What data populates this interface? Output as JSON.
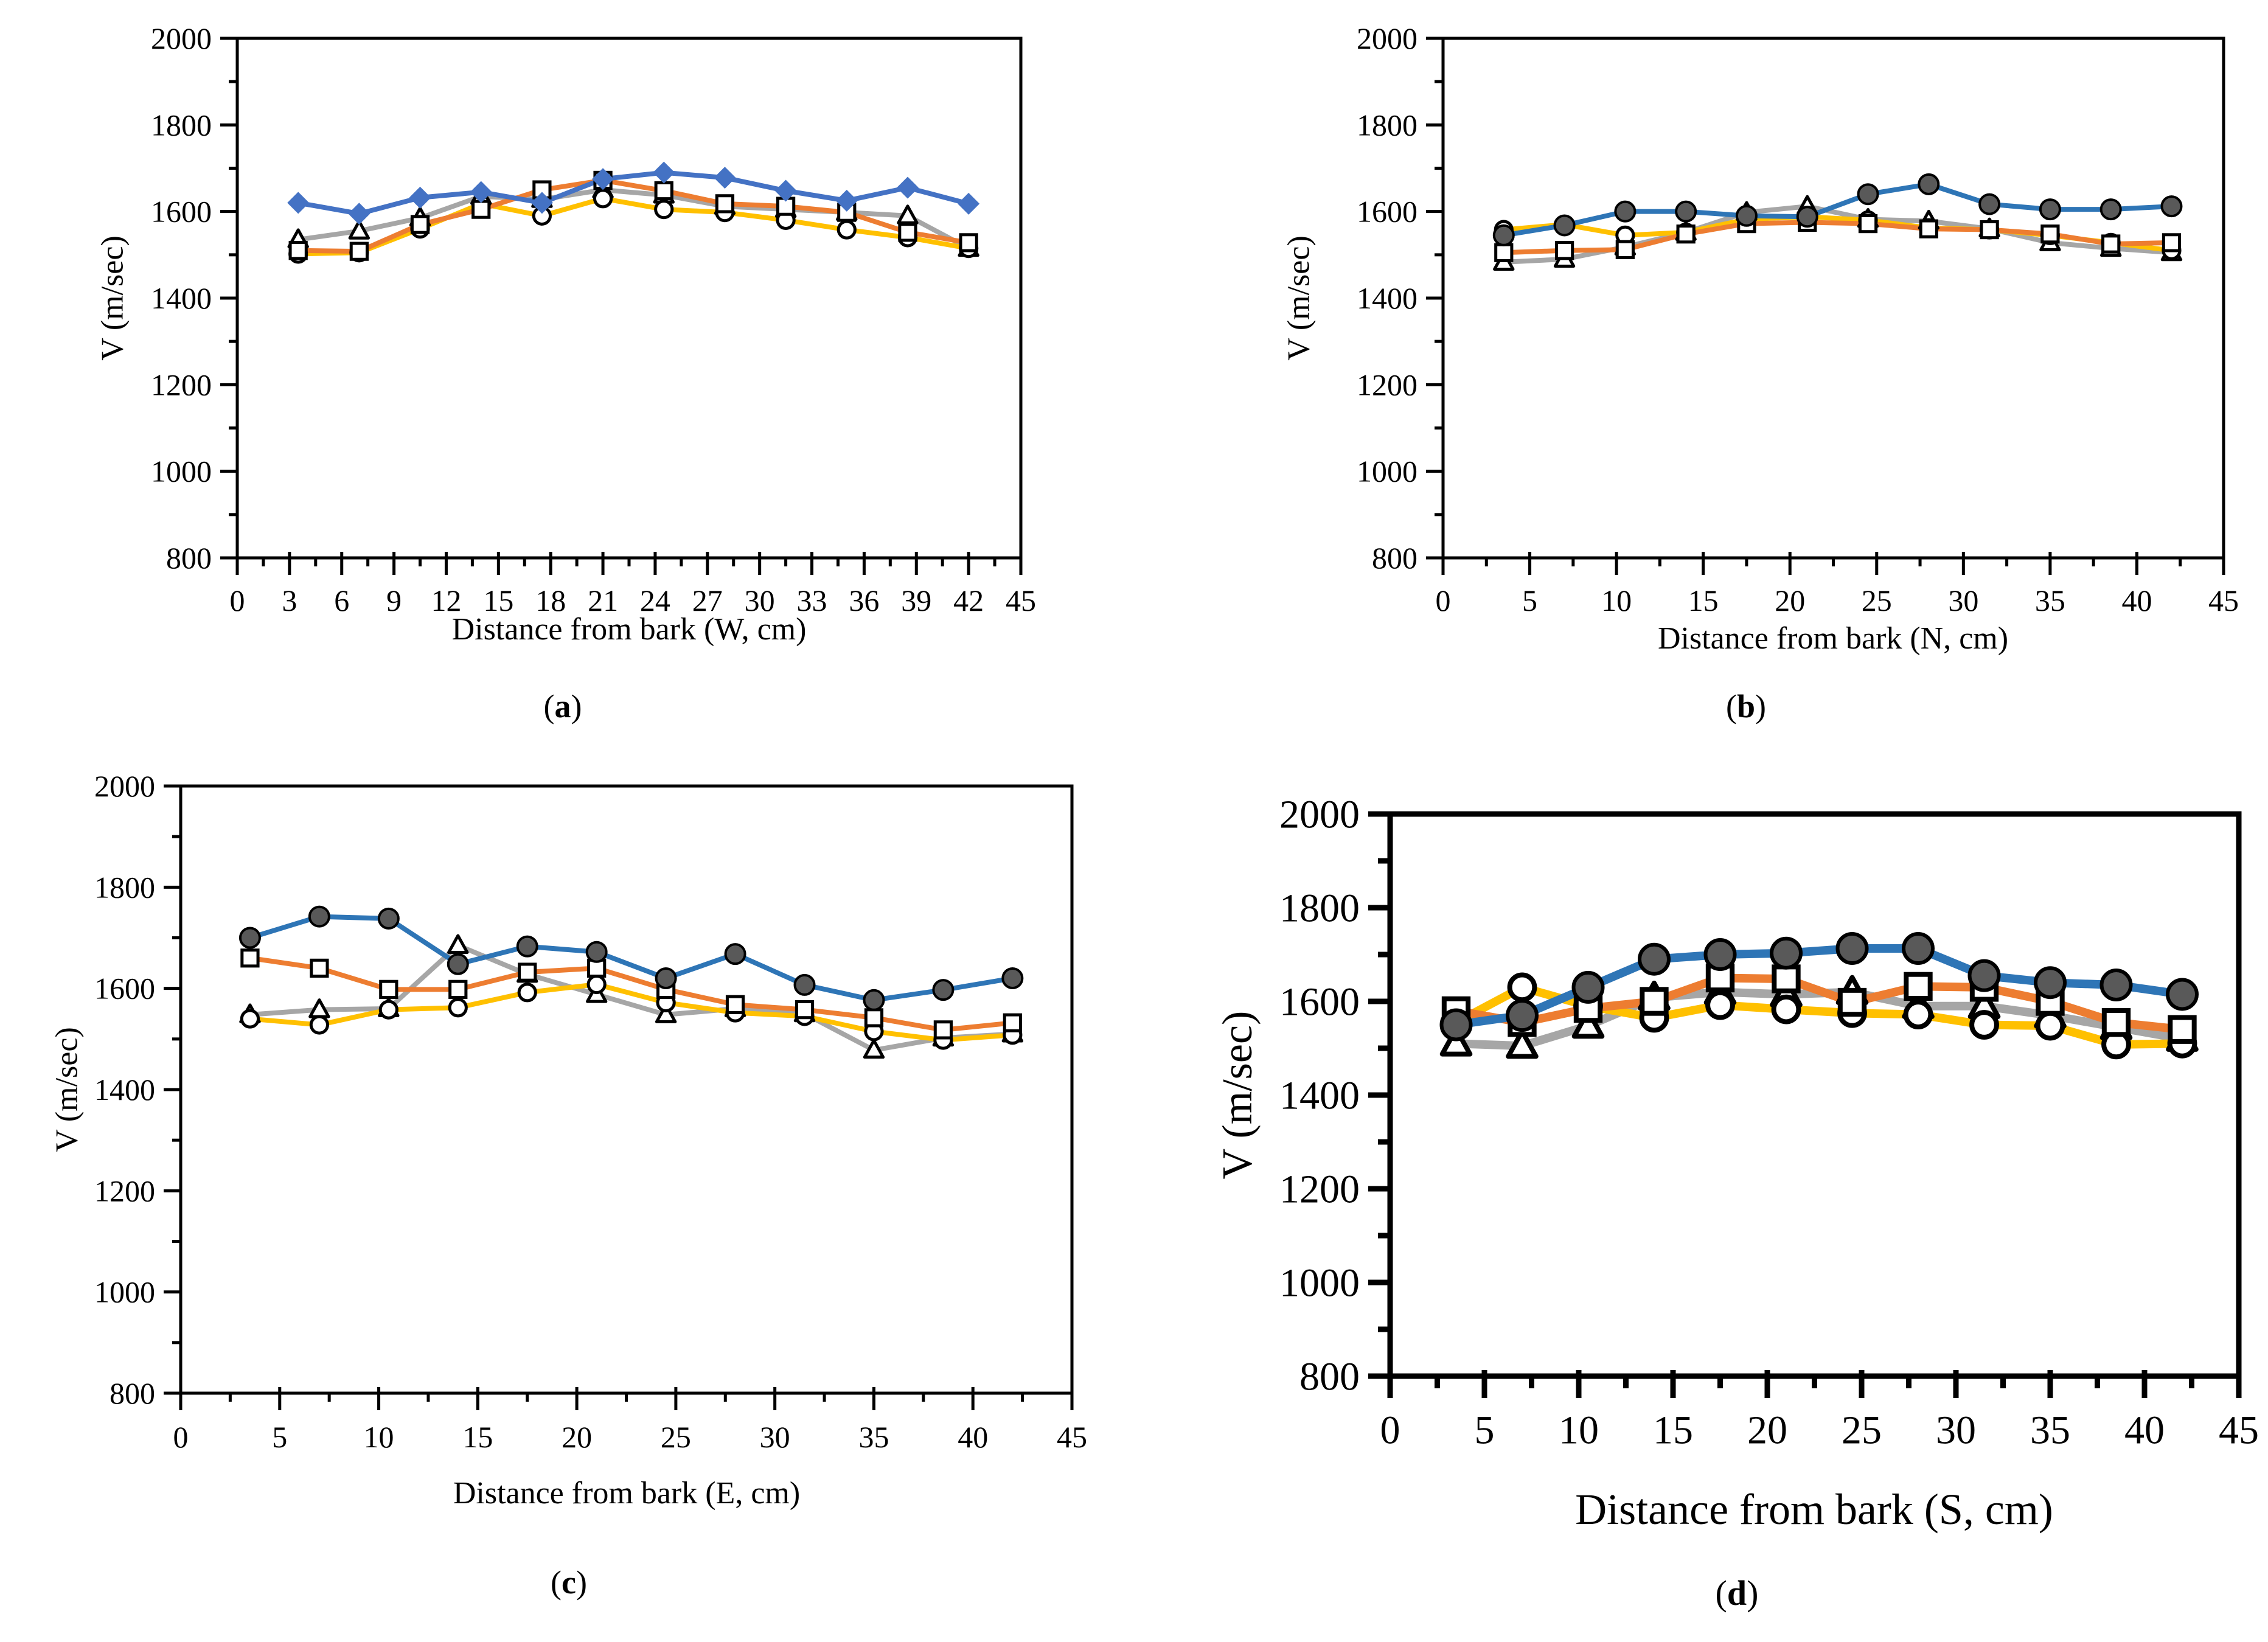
{
  "page": {
    "background": "#ffffff"
  },
  "colors": {
    "axis": "#000000",
    "blue_a": "#4472C4",
    "blue_bcd": "#2E75B6",
    "orange": "#ED7D31",
    "gray": "#A6A6A6",
    "yellow": "#FFC000",
    "dark_marker": "#595959",
    "open_marker_fill": "#FFFFFF",
    "marker_stroke": "#000000"
  },
  "chart_data": [
    {
      "id": "a",
      "type": "line",
      "caption": {
        "open": "(",
        "letter": "a",
        "close": ")"
      },
      "xlabel": "Distance from bark (W, cm)",
      "ylabel": "V  (m/sec)",
      "xlim": [
        0,
        45
      ],
      "ylim": [
        800,
        2000
      ],
      "x_ticks": [
        0,
        3,
        6,
        9,
        12,
        15,
        18,
        21,
        24,
        27,
        30,
        33,
        36,
        39,
        42,
        45
      ],
      "x_minor_step": 1.5,
      "y_ticks": [
        800,
        1000,
        1200,
        1400,
        1600,
        1800,
        2000
      ],
      "y_minor_step": 100,
      "grid": false,
      "legend": "none",
      "x": [
        3.5,
        7,
        10.5,
        14,
        17.5,
        21,
        24.5,
        28,
        31.5,
        35,
        38.5,
        42
      ],
      "series": [
        {
          "name": "gray-open-triangle",
          "marker": "triangle-open",
          "color": "#A6A6A6",
          "values": [
            1535,
            1555,
            1585,
            1635,
            1628,
            1650,
            1638,
            1612,
            1605,
            1598,
            1590,
            1515
          ]
        },
        {
          "name": "yellow-open-circle",
          "marker": "circle-open",
          "color": "#FFC000",
          "values": [
            1502,
            1505,
            1560,
            1618,
            1590,
            1630,
            1605,
            1598,
            1580,
            1558,
            1540,
            1515
          ]
        },
        {
          "name": "orange-open-square",
          "marker": "square-open",
          "color": "#ED7D31",
          "values": [
            1510,
            1508,
            1570,
            1605,
            1650,
            1672,
            1648,
            1618,
            1612,
            1598,
            1552,
            1528
          ]
        },
        {
          "name": "blue-filled-diamond",
          "marker": "diamond-filled",
          "color": "#4472C4",
          "marker_fill": "#4472C4",
          "values": [
            1620,
            1595,
            1632,
            1645,
            1620,
            1675,
            1690,
            1678,
            1648,
            1625,
            1655,
            1618
          ]
        }
      ],
      "layout": {
        "plot": {
          "l": 390,
          "t": 63,
          "r": 1678,
          "b": 917
        },
        "tick_size": 50,
        "xlabel_size": 52,
        "caption_size": 54,
        "xtick_label_dy": 70,
        "xlabel_cx": 1034,
        "xlabel_y": 1005,
        "caption_x": 925,
        "caption_y": 1130,
        "ylabel_x": 185,
        "ylabel_size": 52,
        "axis_w": 5,
        "tick_major": 28,
        "tick_minor": 14,
        "line_w": 8,
        "marker": 16,
        "mstroke": 5,
        "dark_r": 16,
        "dark_stroke": 4
      }
    },
    {
      "id": "b",
      "type": "line",
      "caption": {
        "open": "(",
        "letter": "b",
        "close": ")"
      },
      "xlabel": "Distance from bark (N, cm)",
      "ylabel": "V  (m/sec)",
      "xlim": [
        0,
        45
      ],
      "ylim": [
        800,
        2000
      ],
      "x_ticks": [
        0,
        5,
        10,
        15,
        20,
        25,
        30,
        35,
        40,
        45
      ],
      "x_minor_step": 2.5,
      "y_ticks": [
        800,
        1000,
        1200,
        1400,
        1600,
        1800,
        2000
      ],
      "y_minor_step": 100,
      "grid": false,
      "legend": "none",
      "x": [
        3.5,
        7,
        10.5,
        14,
        17.5,
        21,
        24.5,
        28,
        31.5,
        35,
        38.5,
        42
      ],
      "series": [
        {
          "name": "gray-open-triangle",
          "marker": "triangle-open",
          "color": "#A6A6A6",
          "values": [
            1483,
            1490,
            1518,
            1552,
            1598,
            1612,
            1582,
            1578,
            1560,
            1528,
            1515,
            1505
          ]
        },
        {
          "name": "yellow-open-circle",
          "marker": "circle-open",
          "color": "#FFC000",
          "values": [
            1558,
            1570,
            1545,
            1552,
            1582,
            1588,
            1580,
            1562,
            1558,
            1545,
            1528,
            1510
          ]
        },
        {
          "name": "orange-open-square",
          "marker": "square-open",
          "color": "#ED7D31",
          "values": [
            1505,
            1510,
            1512,
            1548,
            1572,
            1575,
            1572,
            1560,
            1558,
            1548,
            1525,
            1528
          ]
        },
        {
          "name": "blue-dark-circle",
          "marker": "circle-dark",
          "color": "#2E75B6",
          "marker_fill": "#595959",
          "values": [
            1545,
            1568,
            1600,
            1600,
            1590,
            1588,
            1640,
            1663,
            1617,
            1605,
            1605,
            1612
          ]
        }
      ],
      "layout": {
        "plot": {
          "l": 2372,
          "t": 63,
          "r": 3655,
          "b": 917
        },
        "tick_size": 50,
        "xlabel_size": 52,
        "caption_size": 54,
        "xtick_label_dy": 70,
        "xlabel_cx": 3013,
        "xlabel_y": 1020,
        "caption_x": 2870,
        "caption_y": 1130,
        "ylabel_x": 2135,
        "ylabel_size": 52,
        "axis_w": 5,
        "tick_major": 28,
        "tick_minor": 14,
        "line_w": 8,
        "marker": 16,
        "mstroke": 5,
        "dark_r": 16,
        "dark_stroke": 4
      }
    },
    {
      "id": "c",
      "type": "line",
      "caption": {
        "open": "(",
        "letter": "c",
        "close": ")"
      },
      "xlabel": "Distance from bark (E, cm)",
      "ylabel": "V  (m/sec)",
      "xlim": [
        0,
        45
      ],
      "ylim": [
        800,
        2000
      ],
      "x_ticks": [
        0,
        5,
        10,
        15,
        20,
        25,
        30,
        35,
        40,
        45
      ],
      "x_minor_step": 2.5,
      "y_ticks": [
        800,
        1000,
        1200,
        1400,
        1600,
        1800,
        2000
      ],
      "y_minor_step": 100,
      "grid": false,
      "legend": "none",
      "x": [
        3.5,
        7,
        10.5,
        14,
        17.5,
        21,
        24.5,
        28,
        31.5,
        35,
        38.5,
        42
      ],
      "series": [
        {
          "name": "gray-open-triangle",
          "marker": "triangle-open",
          "color": "#A6A6A6",
          "values": [
            1548,
            1558,
            1560,
            1685,
            1628,
            1588,
            1548,
            1560,
            1550,
            1478,
            1502,
            1510
          ]
        },
        {
          "name": "yellow-open-circle",
          "marker": "circle-open",
          "color": "#FFC000",
          "values": [
            1540,
            1528,
            1558,
            1562,
            1592,
            1608,
            1572,
            1552,
            1545,
            1515,
            1498,
            1508
          ]
        },
        {
          "name": "orange-open-square",
          "marker": "square-open",
          "color": "#ED7D31",
          "values": [
            1660,
            1640,
            1598,
            1598,
            1632,
            1640,
            1598,
            1568,
            1558,
            1542,
            1518,
            1532
          ]
        },
        {
          "name": "blue-dark-circle",
          "marker": "circle-dark",
          "color": "#2E75B6",
          "marker_fill": "#595959",
          "values": [
            1700,
            1742,
            1738,
            1648,
            1683,
            1672,
            1620,
            1668,
            1607,
            1577,
            1597,
            1620
          ]
        }
      ],
      "layout": {
        "plot": {
          "l": 297,
          "t": 1292,
          "r": 1762,
          "b": 2290
        },
        "tick_size": 50,
        "xlabel_size": 52,
        "caption_size": 54,
        "xtick_label_dy": 72,
        "xlabel_cx": 1030,
        "xlabel_y": 2425,
        "caption_x": 935,
        "caption_y": 2570,
        "ylabel_x": 110,
        "ylabel_size": 52,
        "axis_w": 5,
        "tick_major": 28,
        "tick_minor": 14,
        "line_w": 8,
        "marker": 16,
        "mstroke": 5,
        "dark_r": 16,
        "dark_stroke": 4
      }
    },
    {
      "id": "d",
      "type": "line",
      "caption": {
        "open": "(",
        "letter": "d",
        "close": ")"
      },
      "xlabel": "Distance from bark (S, cm)",
      "ylabel": "V (m/sec)",
      "xlim": [
        0,
        45
      ],
      "ylim": [
        800,
        2000
      ],
      "x_ticks": [
        0,
        5,
        10,
        15,
        20,
        25,
        30,
        35,
        40,
        45
      ],
      "x_minor_step": 2.5,
      "y_ticks": [
        800,
        1000,
        1200,
        1400,
        1600,
        1800,
        2000
      ],
      "y_minor_step": 100,
      "grid": false,
      "legend": "none",
      "x": [
        3.5,
        7,
        10.5,
        14,
        17.5,
        21,
        24.5,
        28,
        31.5,
        35,
        38.5,
        42
      ],
      "series": [
        {
          "name": "gray-open-triangle",
          "marker": "triangle-open",
          "color": "#A6A6A6",
          "values": [
            1510,
            1505,
            1548,
            1608,
            1620,
            1615,
            1620,
            1590,
            1590,
            1570,
            1545,
            1520
          ]
        },
        {
          "name": "yellow-open-circle",
          "marker": "circle-open",
          "color": "#FFC000",
          "values": [
            1555,
            1630,
            1590,
            1565,
            1592,
            1583,
            1575,
            1572,
            1550,
            1548,
            1508,
            1510
          ]
        },
        {
          "name": "orange-open-square",
          "marker": "square-open",
          "color": "#ED7D31",
          "values": [
            1580,
            1555,
            1585,
            1600,
            1650,
            1648,
            1598,
            1632,
            1630,
            1600,
            1555,
            1540
          ]
        },
        {
          "name": "blue-dark-circle",
          "marker": "circle-dark",
          "color": "#2E75B6",
          "marker_fill": "#595959",
          "values": [
            1550,
            1570,
            1630,
            1690,
            1700,
            1703,
            1713,
            1713,
            1655,
            1640,
            1635,
            1615
          ]
        }
      ],
      "layout": {
        "plot": {
          "l": 2285,
          "t": 1338,
          "r": 3680,
          "b": 2262
        },
        "tick_size": 66,
        "xlabel_size": 72,
        "caption_size": 58,
        "xtick_label_dy": 88,
        "xlabel_cx": 2982,
        "xlabel_y": 2440,
        "caption_x": 2855,
        "caption_y": 2585,
        "ylabel_x": 2035,
        "ylabel_size": 70,
        "axis_w": 9,
        "tick_major": 36,
        "tick_minor": 20,
        "line_w": 14,
        "marker": 24,
        "mstroke": 8,
        "dark_r": 24,
        "dark_stroke": 6
      }
    }
  ]
}
